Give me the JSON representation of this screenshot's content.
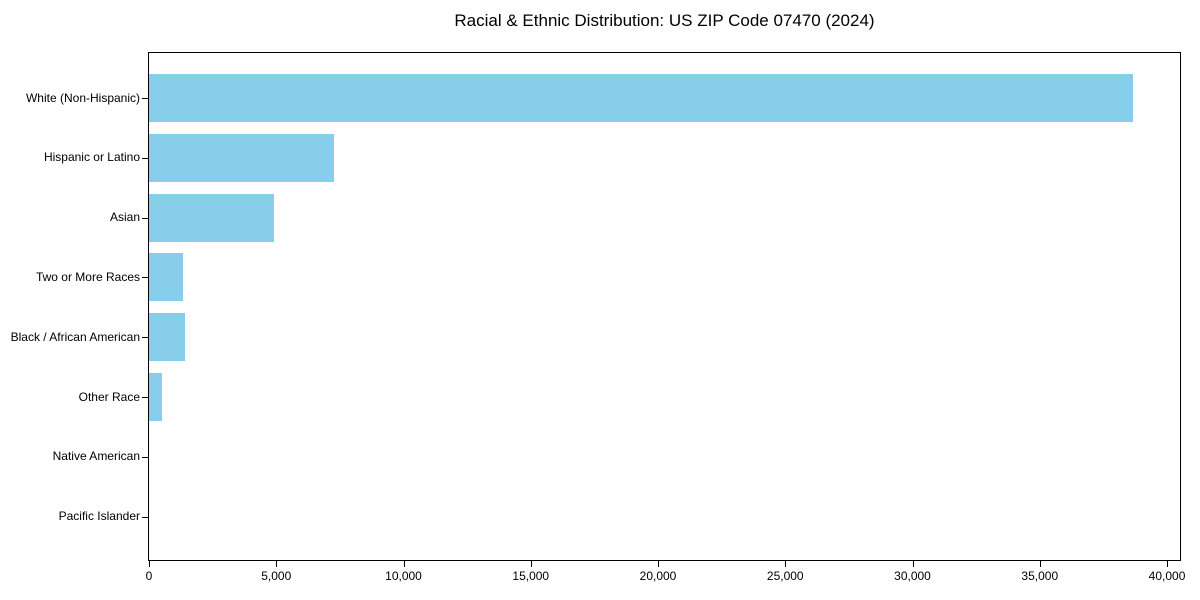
{
  "chart_data": {
    "type": "bar",
    "orientation": "horizontal",
    "title": "Racial & Ethnic Distribution: US ZIP Code 07470 (2024)",
    "categories": [
      "White (Non-Hispanic)",
      "Hispanic or Latino",
      "Asian",
      "Two or More Races",
      "Black / African American",
      "Other Race",
      "Native American",
      "Pacific Islander"
    ],
    "values": [
      38650,
      7260,
      4910,
      1350,
      1400,
      510,
      0,
      0
    ],
    "xlabel": "",
    "ylabel": "",
    "xlim": [
      0,
      40510
    ],
    "xticks": [
      0,
      5000,
      10000,
      15000,
      20000,
      25000,
      30000,
      35000,
      40000
    ],
    "bar_color": "#87CEEB",
    "grid": false,
    "legend": null
  }
}
